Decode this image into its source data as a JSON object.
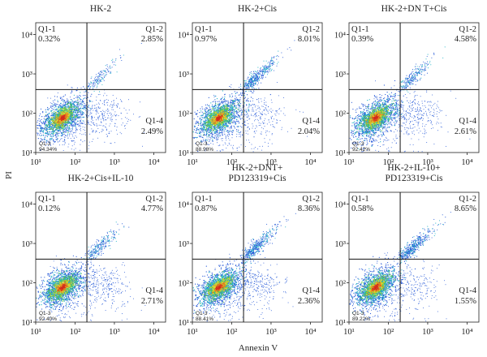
{
  "chart_data": {
    "type": "scatter",
    "xlabel": "Annexin V",
    "ylabel": "PI",
    "x_scale": "log",
    "y_scale": "log",
    "xlim": [
      10,
      20000
    ],
    "ylim": [
      10,
      20000
    ],
    "x_tick_labels": [
      "10¹",
      "10²",
      "10³",
      "10⁴"
    ],
    "y_tick_labels": [
      "10¹",
      "10²",
      "10³",
      "10⁴"
    ],
    "gate_x": 200,
    "gate_y": 400,
    "panels": [
      {
        "title": [
          "HK-2"
        ],
        "quadrants": {
          "q1": {
            "label": "Q1-1",
            "value": "0.32%"
          },
          "q2": {
            "label": "Q1-2",
            "value": "2.85%"
          },
          "q3": {
            "label": "Q1-3",
            "value": "94.34%"
          },
          "q4": {
            "label": "Q1-4",
            "value": "2.49%"
          }
        }
      },
      {
        "title": [
          "HK-2+Cis"
        ],
        "quadrants": {
          "q1": {
            "label": "Q1-1",
            "value": "0.97%"
          },
          "q2": {
            "label": "Q1-2",
            "value": "8.01%"
          },
          "q3": {
            "label": "Q1-3",
            "value": "88.98%"
          },
          "q4": {
            "label": "Q1-4",
            "value": "2.04%"
          }
        }
      },
      {
        "title": [
          "HK-2+DN T+Cis"
        ],
        "quadrants": {
          "q1": {
            "label": "Q1-1",
            "value": "0.39%"
          },
          "q2": {
            "label": "Q1-2",
            "value": "4.58%"
          },
          "q3": {
            "label": "Q1-3",
            "value": "92.42%"
          },
          "q4": {
            "label": "Q1-4",
            "value": "2.61%"
          }
        }
      },
      {
        "title": [
          "HK-2+Cis+IL-10"
        ],
        "quadrants": {
          "q1": {
            "label": "Q1-1",
            "value": "0.12%"
          },
          "q2": {
            "label": "Q1-2",
            "value": "4.77%"
          },
          "q3": {
            "label": "Q1-3",
            "value": "92.40%"
          },
          "q4": {
            "label": "Q1-4",
            "value": "2.71%"
          }
        }
      },
      {
        "title": [
          "HK-2+DNT+",
          "PD123319+Cis"
        ],
        "quadrants": {
          "q1": {
            "label": "Q1-1",
            "value": "0.87%"
          },
          "q2": {
            "label": "Q1-2",
            "value": "8.36%"
          },
          "q3": {
            "label": "Q1-3",
            "value": "88.41%"
          },
          "q4": {
            "label": "Q1-4",
            "value": "2.36%"
          }
        }
      },
      {
        "title": [
          "HK-2+IL-10+",
          "PD123319+Cis"
        ],
        "quadrants": {
          "q1": {
            "label": "Q1-1",
            "value": "0.58%"
          },
          "q2": {
            "label": "Q1-2",
            "value": "8.65%"
          },
          "q3": {
            "label": "Q1-3",
            "value": "89.22%"
          },
          "q4": {
            "label": "Q1-4",
            "value": "1.55%"
          }
        }
      }
    ],
    "colors": {
      "density_low": "#2a5cd8",
      "density_mid1": "#21b3c7",
      "density_mid2": "#5ec84a",
      "density_high1": "#e6d52a",
      "density_high2": "#e8761f",
      "density_peak": "#d22b1e"
    }
  }
}
